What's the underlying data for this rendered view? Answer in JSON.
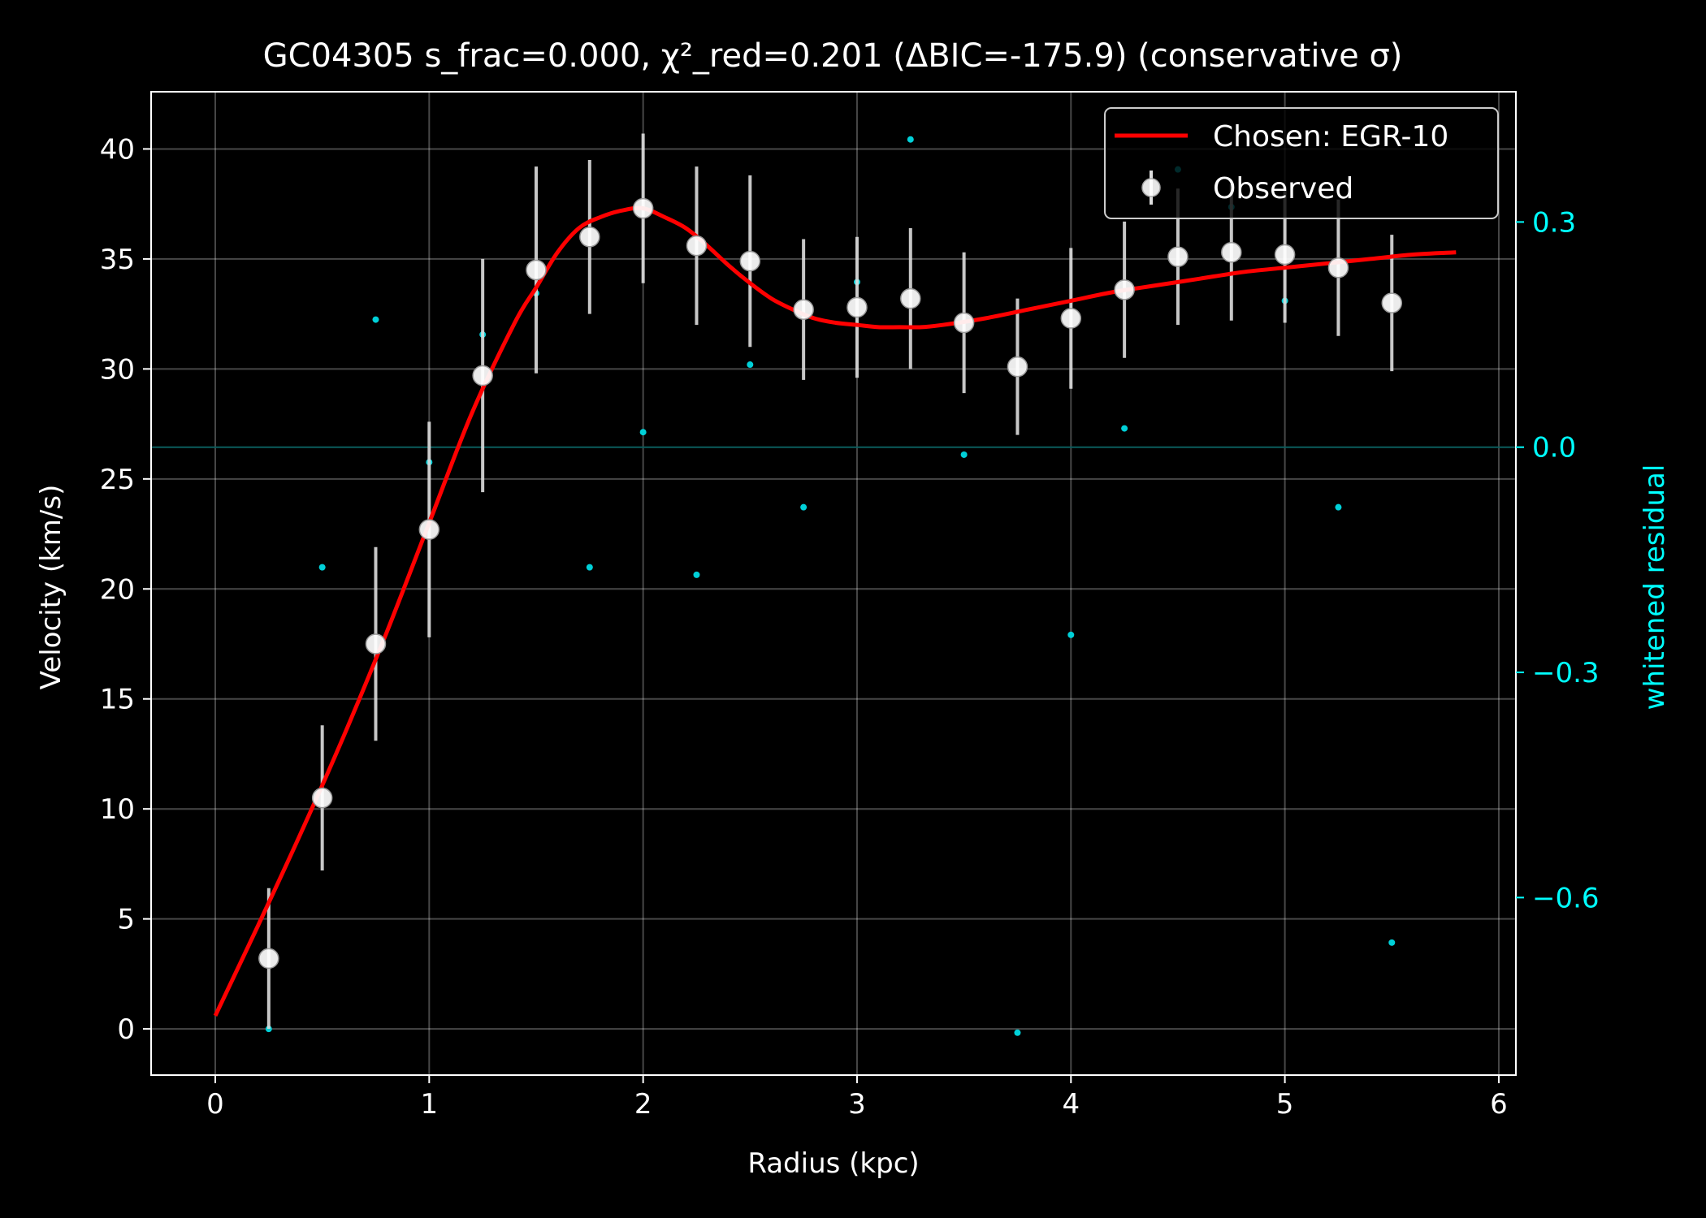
{
  "chart_data": {
    "type": "scatter",
    "title": "GC04305  s_frac=0.000, χ²_red=0.201  (ΔBIC=-175.9) (conservative σ)",
    "xlabel": "Radius (kpc)",
    "ylabel": "Velocity (km/s)",
    "y2label": "whitened residual",
    "xlim": [
      -0.3,
      6.08
    ],
    "ylim": [
      -2.1,
      42.6
    ],
    "y2lim": [
      -0.8365,
      0.4735
    ],
    "xticks": [
      "0",
      "1",
      "2",
      "3",
      "4",
      "5",
      "6"
    ],
    "yticks": [
      "0",
      "5",
      "10",
      "15",
      "20",
      "25",
      "30",
      "35",
      "40"
    ],
    "y2ticks": [
      "0.3",
      "0.0",
      "−0.3",
      "−0.6"
    ],
    "grid": true,
    "legend_position": "top-right",
    "legend": [
      {
        "label": "Chosen: EGR-10",
        "kind": "line",
        "color": "#ff0000"
      },
      {
        "label": "Observed",
        "kind": "errorbar",
        "color": "#ffffff"
      }
    ],
    "colors": {
      "model": "#ff0000",
      "observed": "#ffffff",
      "residual": "#00d0d8",
      "zero_line": "#0b5c5c"
    },
    "series": [
      {
        "name": "Chosen: EGR-10",
        "kind": "line",
        "x": [
          0,
          0.2,
          0.4,
          0.6,
          0.8,
          1.0,
          1.2,
          1.4,
          1.5,
          1.6,
          1.7,
          1.8,
          1.9,
          2.0,
          2.1,
          2.2,
          2.3,
          2.4,
          2.5,
          2.6,
          2.7,
          2.8,
          2.9,
          3.0,
          3.1,
          3.2,
          3.3,
          3.4,
          3.6,
          3.8,
          4.0,
          4.2,
          4.4,
          4.6,
          4.8,
          5.0,
          5.2,
          5.4,
          5.6,
          5.8
        ],
        "y": [
          0.6,
          4.7,
          8.9,
          13.3,
          18.0,
          23.0,
          28.0,
          32.1,
          33.7,
          35.3,
          36.4,
          36.9,
          37.2,
          37.3,
          36.9,
          36.4,
          35.6,
          34.7,
          33.9,
          33.2,
          32.7,
          32.3,
          32.1,
          32.0,
          31.9,
          31.9,
          31.9,
          32.0,
          32.3,
          32.7,
          33.1,
          33.5,
          33.8,
          34.1,
          34.4,
          34.6,
          34.8,
          35.0,
          35.2,
          35.3
        ]
      },
      {
        "name": "Observed",
        "kind": "errorbar",
        "x": [
          0.25,
          0.5,
          0.75,
          1.0,
          1.25,
          1.5,
          1.75,
          2.0,
          2.25,
          2.5,
          2.75,
          3.0,
          3.25,
          3.5,
          3.75,
          4.0,
          4.25,
          4.5,
          4.75,
          5.0,
          5.25,
          5.5
        ],
        "y": [
          3.2,
          10.5,
          17.5,
          22.7,
          29.7,
          34.5,
          36.0,
          37.3,
          35.6,
          34.9,
          32.7,
          32.8,
          33.2,
          32.1,
          30.1,
          32.3,
          33.6,
          35.1,
          35.3,
          35.2,
          34.6,
          33.0
        ],
        "yerr": [
          3.2,
          3.3,
          4.4,
          4.9,
          5.3,
          4.7,
          3.5,
          3.4,
          3.6,
          3.9,
          3.2,
          3.2,
          3.2,
          3.2,
          3.1,
          3.2,
          3.1,
          3.1,
          3.1,
          3.1,
          3.1,
          3.1
        ]
      },
      {
        "name": "",
        "kind": "residual",
        "axis": "right",
        "x": [
          0.25,
          0.5,
          0.75,
          1.0,
          1.25,
          1.5,
          1.75,
          2.0,
          2.25,
          2.5,
          2.75,
          3.0,
          3.25,
          3.5,
          3.75,
          4.0,
          4.25,
          4.5,
          4.75,
          5.0,
          5.25,
          5.5
        ],
        "y": [
          -0.775,
          -0.16,
          0.17,
          -0.02,
          0.15,
          0.205,
          -0.16,
          0.02,
          -0.17,
          0.11,
          -0.08,
          0.22,
          0.41,
          -0.01,
          -0.78,
          -0.25,
          0.025,
          0.37,
          0.32,
          0.195,
          -0.08,
          -0.66
        ]
      }
    ]
  }
}
